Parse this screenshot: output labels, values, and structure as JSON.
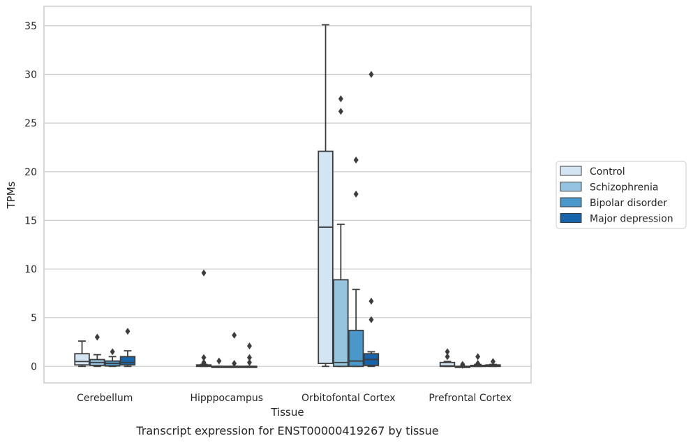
{
  "chart_data": {
    "type": "box",
    "title": "",
    "caption": "Transcript expression for ENST00000419267 by tissue",
    "xlabel": "Tissue",
    "ylabel": "TPMs",
    "ylim": [
      -1.7,
      37
    ],
    "yticks": [
      0,
      5,
      10,
      15,
      20,
      25,
      30,
      35
    ],
    "grid": true,
    "legend_position": "right",
    "categories": [
      "Cerebellum",
      "Hipppocampus",
      "Orbitofontal Cortex",
      "Prefrontal Cortex"
    ],
    "series": [
      {
        "name": "Control",
        "color": "#d3e4f3"
      },
      {
        "name": "Schizophrenia",
        "color": "#94c4df"
      },
      {
        "name": "Bipolar disorder",
        "color": "#4a98c9"
      },
      {
        "name": "Major depression",
        "color": "#1764ab"
      }
    ],
    "boxes": [
      [
        {
          "q1": 0.15,
          "median": 0.5,
          "q3": 1.3,
          "whisker_low": 0,
          "whisker_high": 2.6,
          "outliers": []
        },
        {
          "q1": 0.1,
          "median": 0.4,
          "q3": 0.7,
          "whisker_low": 0,
          "whisker_high": 1.2,
          "outliers": [
            3.0
          ]
        },
        {
          "q1": 0.05,
          "median": 0.3,
          "q3": 0.55,
          "whisker_low": 0,
          "whisker_high": 1.0,
          "outliers": [
            1.5
          ]
        },
        {
          "q1": 0.15,
          "median": 0.4,
          "q3": 1.0,
          "whisker_low": 0,
          "whisker_high": 1.6,
          "outliers": [
            3.6
          ]
        }
      ],
      [
        {
          "q1": 0,
          "median": 0.05,
          "q3": 0.15,
          "whisker_low": 0,
          "whisker_high": 0.2,
          "outliers": [
            0.3,
            0.4,
            0.9,
            9.6
          ]
        },
        {
          "q1": 0,
          "median": 0,
          "q3": 0,
          "whisker_low": 0,
          "whisker_high": 0,
          "outliers": [
            0.55
          ]
        },
        {
          "q1": 0,
          "median": 0,
          "q3": 0,
          "whisker_low": 0,
          "whisker_high": 0,
          "outliers": [
            0.3,
            3.2
          ]
        },
        {
          "q1": 0,
          "median": 0,
          "q3": 0,
          "whisker_low": 0,
          "whisker_high": 0,
          "outliers": [
            0.4,
            0.9,
            2.1
          ]
        }
      ],
      [
        {
          "q1": 0.3,
          "median": 14.3,
          "q3": 22.1,
          "whisker_low": 0,
          "whisker_high": 35.1,
          "outliers": []
        },
        {
          "q1": 0,
          "median": 0.4,
          "q3": 8.9,
          "whisker_low": 0,
          "whisker_high": 14.6,
          "outliers": [
            26.2,
            27.5
          ]
        },
        {
          "q1": 0,
          "median": 0.55,
          "q3": 3.7,
          "whisker_low": 0,
          "whisker_high": 7.9,
          "outliers": [
            17.7,
            21.2
          ]
        },
        {
          "q1": 0.1,
          "median": 0.7,
          "q3": 1.3,
          "whisker_low": 0,
          "whisker_high": 1.5,
          "outliers": [
            4.8,
            6.7,
            30.0
          ]
        }
      ],
      [
        {
          "q1": 0,
          "median": 0.05,
          "q3": 0.4,
          "whisker_low": 0,
          "whisker_high": 0.5,
          "outliers": [
            1.0,
            1.5
          ]
        },
        {
          "q1": 0,
          "median": 0,
          "q3": 0,
          "whisker_low": 0,
          "whisker_high": 0,
          "outliers": [
            0.1,
            0.2
          ]
        },
        {
          "q1": 0,
          "median": 0.05,
          "q3": 0.1,
          "whisker_low": 0,
          "whisker_high": 0.2,
          "outliers": [
            0.3,
            1.0
          ]
        },
        {
          "q1": 0,
          "median": 0.05,
          "q3": 0.15,
          "whisker_low": 0,
          "whisker_high": 0.2,
          "outliers": [
            0.5
          ]
        }
      ]
    ]
  }
}
